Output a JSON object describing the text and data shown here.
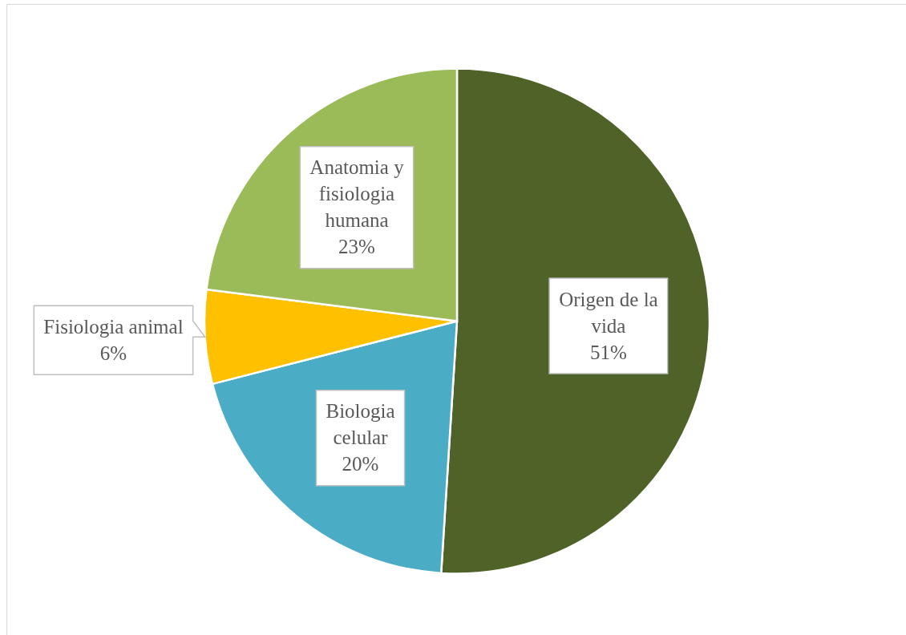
{
  "chart_data": {
    "type": "pie",
    "categories": [
      "Origen de la vida",
      "Biologia celular",
      "Fisiologia animal",
      "Anatomia y fisiologia humana"
    ],
    "values": [
      51,
      20,
      6,
      23
    ],
    "value_labels": [
      "51%",
      "20%",
      "6%",
      "23%"
    ],
    "colors": [
      "#4f6228",
      "#4bacc6",
      "#ffc000",
      "#9bbb59"
    ]
  }
}
